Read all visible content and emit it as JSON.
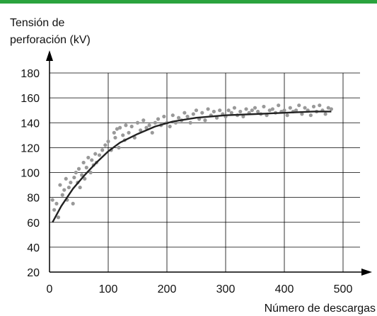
{
  "chart_data": {
    "type": "scatter",
    "title": "",
    "ylabel": [
      "Tensión de",
      "perforación (kV)"
    ],
    "xlabel": "Número de descargas",
    "xlim": [
      0,
      500
    ],
    "ylim": [
      20,
      180
    ],
    "xticks": [
      0,
      100,
      200,
      300,
      400,
      500
    ],
    "yticks": [
      20,
      40,
      60,
      80,
      100,
      120,
      140,
      160,
      180
    ],
    "grid": true,
    "colors": {
      "points": "#999999",
      "curve": "#222222",
      "top_bar": "#2aa33e",
      "axis": "#000000",
      "grid": "#000000"
    },
    "series": [
      {
        "kind": "points",
        "x": [
          5,
          8,
          12,
          15,
          18,
          22,
          25,
          28,
          30,
          33,
          36,
          40,
          42,
          45,
          48,
          50,
          52,
          55,
          58,
          60,
          63,
          66,
          70,
          72,
          75,
          78,
          80,
          85,
          90,
          95,
          100,
          105,
          110,
          112,
          115,
          118,
          120,
          125,
          128,
          130,
          135,
          140,
          145,
          150,
          155,
          160,
          165,
          170,
          175,
          180,
          185,
          190,
          195,
          200,
          205,
          210,
          215,
          220,
          225,
          230,
          235,
          240,
          245,
          250,
          255,
          260,
          265,
          270,
          275,
          280,
          285,
          290,
          295,
          300,
          305,
          310,
          315,
          320,
          325,
          330,
          335,
          340,
          345,
          350,
          355,
          360,
          365,
          370,
          375,
          380,
          385,
          390,
          395,
          400,
          405,
          410,
          415,
          420,
          425,
          430,
          435,
          440,
          445,
          450,
          455,
          460,
          465,
          470,
          475,
          480
        ],
        "y": [
          78,
          70,
          75,
          64,
          90,
          82,
          86,
          95,
          78,
          88,
          92,
          75,
          96,
          100,
          92,
          103,
          88,
          98,
          108,
          95,
          104,
          112,
          100,
          110,
          106,
          115,
          108,
          114,
          118,
          122,
          125,
          118,
          132,
          128,
          135,
          120,
          136,
          130,
          126,
          138,
          132,
          137,
          128,
          140,
          134,
          142,
          136,
          138,
          132,
          140,
          143,
          138,
          145,
          140,
          137,
          146,
          140,
          144,
          142,
          148,
          145,
          140,
          147,
          150,
          143,
          148,
          142,
          151,
          146,
          149,
          144,
          150,
          147,
          145,
          150,
          148,
          152,
          146,
          149,
          145,
          151,
          148,
          150,
          152,
          149,
          147,
          153,
          146,
          150,
          151,
          148,
          154,
          149,
          150,
          146,
          152,
          149,
          150,
          154,
          147,
          152,
          150,
          146,
          153,
          149,
          154,
          150,
          147,
          152,
          151
        ]
      },
      {
        "kind": "curve",
        "x": [
          5,
          20,
          40,
          60,
          80,
          100,
          120,
          150,
          180,
          210,
          250,
          300,
          350,
          400,
          450,
          480
        ],
        "y": [
          60,
          73,
          87,
          98,
          108,
          117,
          124,
          131,
          137,
          141,
          144,
          146,
          147,
          148,
          149,
          149
        ]
      }
    ]
  }
}
